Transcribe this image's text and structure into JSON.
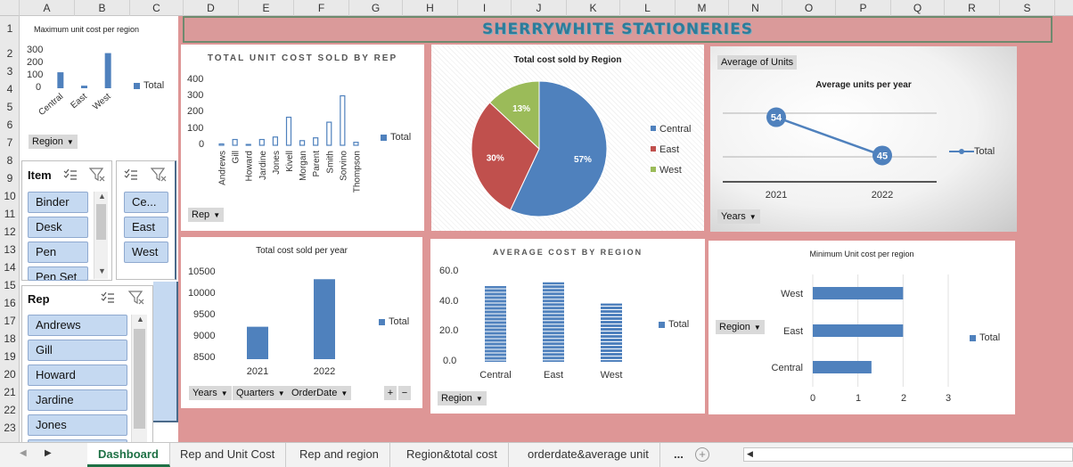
{
  "columns": [
    "A",
    "B",
    "C",
    "D",
    "E",
    "F",
    "G",
    "H",
    "I",
    "J",
    "K",
    "L",
    "M",
    "N",
    "O",
    "P",
    "Q",
    "R",
    "S"
  ],
  "rows": [
    "1",
    "2",
    "3",
    "4",
    "5",
    "6",
    "7",
    "8",
    "9",
    "10",
    "11",
    "12",
    "13",
    "14",
    "15",
    "16",
    "17",
    "18",
    "19",
    "20",
    "21",
    "22",
    "23"
  ],
  "banner": {
    "title": "SHERRYWHITE STATIONERIES"
  },
  "charts": {
    "max_unit_cost": {
      "title": "Maximum unit cost per region",
      "filter_button": "Region",
      "legend": "Total",
      "y_ticks": [
        "300",
        "200",
        "100",
        "0"
      ]
    },
    "total_unit_cost_rep": {
      "title": "TOTAL UNIT COST SOLD BY REP",
      "filter_button": "Rep",
      "legend": "Total",
      "y_ticks": [
        "400",
        "300",
        "200",
        "100",
        "0"
      ]
    },
    "total_cost_region": {
      "title": "Total cost sold by Region"
    },
    "avg_units_year": {
      "title": "Average units per year",
      "field_button": "Average of Units",
      "filter_button": "Years",
      "legend": "Total"
    },
    "total_cost_year": {
      "title": "Total cost sold per year",
      "legend": "Total",
      "y_ticks": [
        "10500",
        "10000",
        "9500",
        "9000",
        "8500"
      ],
      "filter_buttons": [
        "Years",
        "Quarters",
        "OrderDate"
      ],
      "plus": "+",
      "minus": "−"
    },
    "avg_cost_region": {
      "title": "AVERAGE COST BY REGION",
      "legend": "Total",
      "filter_button": "Region",
      "y_ticks": [
        "60.0",
        "40.0",
        "20.0",
        "0.0"
      ]
    },
    "min_unit_cost": {
      "title": "Minimum Unit cost per region",
      "legend": "Total",
      "filter_button": "Region",
      "x_ticks": [
        "0",
        "1",
        "2",
        "3"
      ]
    }
  },
  "chart_data": [
    {
      "type": "bar",
      "title": "Maximum unit cost per region",
      "categories": [
        "Central",
        "East",
        "West"
      ],
      "values": [
        125,
        20,
        275
      ],
      "ylim": [
        0,
        300
      ],
      "legend": "Total"
    },
    {
      "type": "bar",
      "title": "TOTAL UNIT COST SOLD BY REP",
      "categories": [
        "Andrews",
        "Gill",
        "Howard",
        "Jardine",
        "Jones",
        "Kivell",
        "Morgan",
        "Parent",
        "Smith",
        "Sorvino",
        "Thompson"
      ],
      "values": [
        8,
        35,
        5,
        35,
        50,
        170,
        28,
        45,
        140,
        300,
        18
      ],
      "ylim": [
        0,
        400
      ],
      "legend": "Total"
    },
    {
      "type": "pie",
      "title": "Total cost sold by Region",
      "categories": [
        "Central",
        "East",
        "West"
      ],
      "values": [
        57,
        30,
        13
      ],
      "labels": [
        "57%",
        "30%",
        "13%"
      ],
      "colors": [
        "#4f81bd",
        "#c0504d",
        "#9bbb59"
      ]
    },
    {
      "type": "line",
      "title": "Average units per year",
      "categories": [
        "2021",
        "2022"
      ],
      "values": [
        54,
        45
      ],
      "legend": "Total"
    },
    {
      "type": "bar",
      "title": "Total cost sold per year",
      "categories": [
        "2021",
        "2022"
      ],
      "values": [
        9250,
        10350
      ],
      "ylim": [
        8500,
        10500
      ],
      "legend": "Total"
    },
    {
      "type": "bar",
      "title": "AVERAGE COST BY REGION",
      "categories": [
        "Central",
        "East",
        "West"
      ],
      "values": [
        50,
        52.5,
        38.5
      ],
      "ylim": [
        0,
        60
      ],
      "legend": "Total"
    },
    {
      "type": "bar",
      "orientation": "horizontal",
      "title": "Minimum Unit cost per region",
      "categories": [
        "West",
        "East",
        "Central"
      ],
      "values": [
        2,
        2,
        1.3
      ],
      "xlim": [
        0,
        3
      ],
      "legend": "Total"
    }
  ],
  "slicers": {
    "item": {
      "header": "Item",
      "items": [
        "Binder",
        "Desk",
        "Pen",
        "Pen Set"
      ]
    },
    "region": {
      "items": [
        "Ce...",
        "East",
        "West"
      ]
    },
    "rep": {
      "header": "Rep",
      "items": [
        "Andrews",
        "Gill",
        "Howard",
        "Jardine",
        "Jones"
      ]
    }
  },
  "tabs": {
    "items": [
      "Dashboard",
      "Rep and Unit Cost",
      "Rep and region",
      "Region&total cost",
      "orderdate&average unit"
    ],
    "more": "...",
    "add": "+"
  },
  "colors": {
    "accent": "#4f81bd",
    "background": "#de9696",
    "banner_text": "#2e7c9a",
    "tab_active": "#1e7145"
  }
}
